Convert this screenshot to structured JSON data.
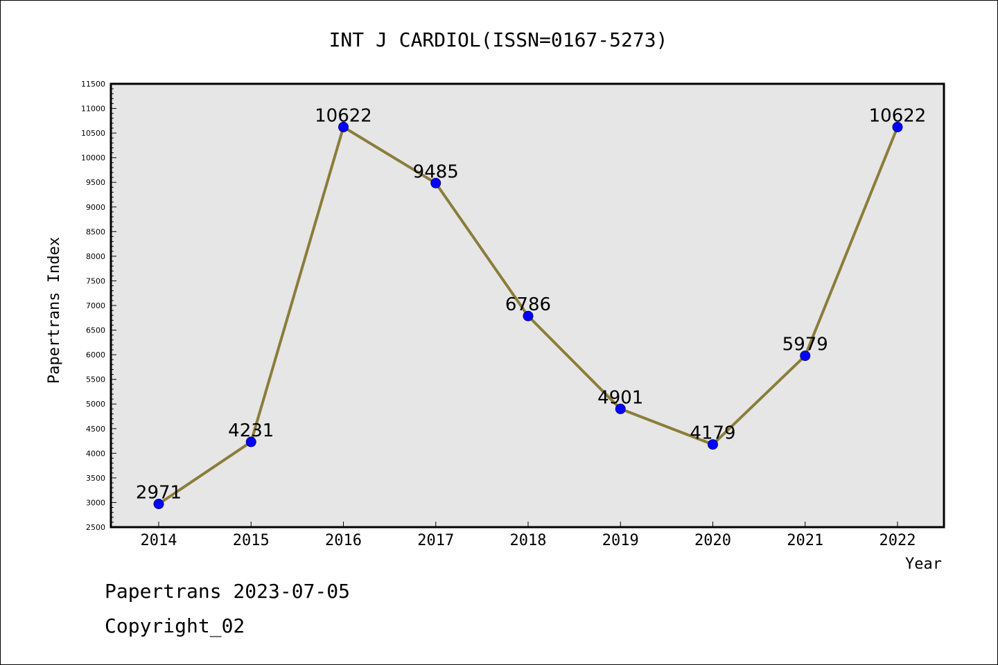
{
  "chart_data": {
    "type": "line",
    "title": "INT J CARDIOL(ISSN=0167-5273)",
    "xlabel": "Year",
    "ylabel": "Papertrans Index",
    "ylim": [
      2500,
      11500
    ],
    "ytick_step": 500,
    "categories": [
      "2014",
      "2015",
      "2016",
      "2017",
      "2018",
      "2019",
      "2020",
      "2021",
      "2022"
    ],
    "values": [
      2971,
      4231,
      10622,
      9485,
      6786,
      4901,
      4179,
      5979,
      10622
    ],
    "data_labels": true,
    "grid": false,
    "legend": "none"
  },
  "footer": {
    "source": "Papertrans 2023-07-05",
    "copyright": "Copyright_02"
  },
  "colors": {
    "plot_background": "#e6e6e6",
    "line": "#8b7d3a",
    "marker": "#0000ff",
    "marker_edge": "#000080",
    "axes": "#000000"
  }
}
